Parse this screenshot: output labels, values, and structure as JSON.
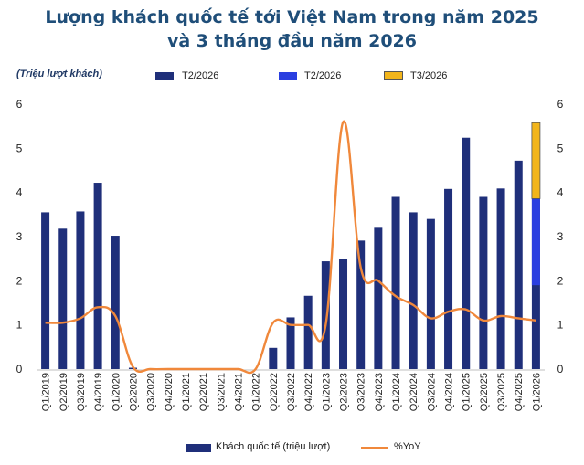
{
  "title_line1": "Lượng khách quốc tế tới Việt Nam trong năm 2025",
  "title_line2": "và 3 tháng đầu năm 2026",
  "unit_label": "(Triệu lượt khách)",
  "colors": {
    "bar": "#1f2f7a",
    "bar_t2_2026": "#2a3fe0",
    "bar_t3_2026": "#f2b51b",
    "line": "#f0883b",
    "title": "#1f4e79"
  },
  "chart_data": {
    "type": "bar",
    "categories": [
      "Q1/2019",
      "Q2/2019",
      "Q3/2019",
      "Q4/2019",
      "Q1/2020",
      "Q2/2020",
      "Q3/2020",
      "Q4/2020",
      "Q1/2021",
      "Q2/2021",
      "Q3/2021",
      "Q4/2021",
      "Q1/2022",
      "Q2/2022",
      "Q3/2022",
      "Q4/2022",
      "Q1/2023",
      "Q2/2023",
      "Q3/2023",
      "Q4/2023",
      "Q1/2024",
      "Q2/2024",
      "Q3/2024",
      "Q4/2024",
      "Q1/2025",
      "Q2/2025",
      "Q3/2025",
      "Q4/2025",
      "Q1/2026"
    ],
    "series": [
      {
        "name": "Khách quốc tế (triệu lượt)",
        "axis": "left",
        "values": [
          3.55,
          3.18,
          3.57,
          4.22,
          3.02,
          0.03,
          0,
          0,
          0,
          0,
          0,
          0,
          0,
          0.48,
          1.17,
          1.66,
          2.44,
          2.49,
          2.91,
          3.2,
          3.9,
          3.55,
          3.4,
          4.08,
          5.24,
          3.9,
          4.09,
          4.72,
          5.58
        ],
        "segments_last": [
          {
            "name": "T2/2026",
            "from": 0,
            "to": 3.86
          },
          {
            "name": "T2/2026",
            "from": 1.9,
            "to": 3.86
          },
          {
            "name": "T3/2026",
            "from": 3.86,
            "to": 5.58
          }
        ]
      },
      {
        "name": "%YoY",
        "axis": "right",
        "type": "line",
        "values": [
          1.05,
          1.05,
          1.15,
          1.4,
          1.2,
          0.05,
          0,
          0,
          0,
          0,
          0,
          0,
          0,
          1.05,
          1.0,
          1.0,
          1.0,
          5.6,
          2.3,
          2.0,
          1.65,
          1.45,
          1.15,
          1.3,
          1.35,
          1.1,
          1.2,
          1.15,
          1.1
        ]
      }
    ],
    "legend_top": [
      "T2/2026",
      "T2/2026",
      "T3/2026"
    ],
    "legend_bottom": [
      "Khách quốc tế (triệu lượt)",
      "%YoY"
    ],
    "ylim_left": [
      0,
      6
    ],
    "yticks_left": [
      "0",
      "1",
      "2",
      "3",
      "4",
      "5",
      "6"
    ],
    "ylim_right": [
      0,
      6
    ],
    "yticks_right": [
      "0",
      "1",
      "2",
      "3",
      "4",
      "5",
      "6"
    ],
    "grid": false
  }
}
